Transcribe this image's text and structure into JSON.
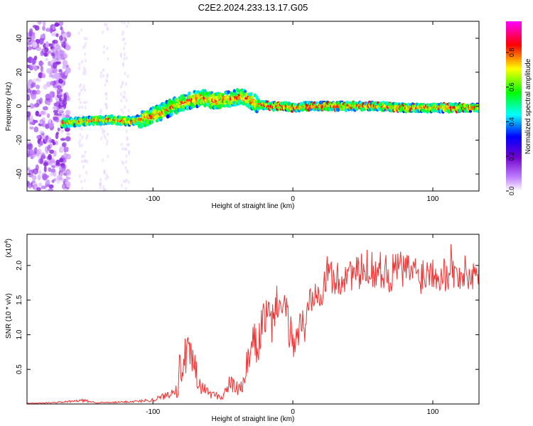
{
  "title": "C2E2.2024.233.13.17.G05",
  "chart_data": [
    {
      "type": "heatmap",
      "xlabel": "Height of straight line (km)",
      "ylabel": "Frequency (Hz)",
      "xlim": [
        -190,
        133
      ],
      "ylim": [
        -50,
        50
      ],
      "xticks": [
        -100,
        0,
        100
      ],
      "yticks": [
        -40,
        -20,
        0,
        20,
        40
      ],
      "colorbar": {
        "label": "Normalized spectral amplitude",
        "range": [
          0,
          0.98
        ],
        "ticks": [
          0.0,
          0.2,
          0.4,
          0.6,
          0.8
        ],
        "colors": [
          "#ffffff",
          "#c080ff",
          "#7000d0",
          "#0000ff",
          "#00ffff",
          "#00ff00",
          "#ffff00",
          "#ff0000",
          "#ff00ff"
        ]
      },
      "ridge": {
        "x": [
          -165,
          -150,
          -130,
          -115,
          -105,
          -95,
          -85,
          -75,
          -65,
          -55,
          -45,
          -38,
          -32,
          -25,
          -15,
          -5,
          0,
          10,
          20,
          40,
          60,
          80,
          100,
          120,
          133
        ],
        "freq": [
          -10,
          -9,
          -8,
          -9,
          -7,
          -4,
          0,
          3,
          5,
          3,
          4,
          6,
          4,
          1,
          0,
          0,
          -1,
          0,
          0,
          0,
          0,
          -1,
          -1,
          -1,
          -1
        ]
      },
      "noise_band": {
        "x_from": -190,
        "x_to": -160
      }
    },
    {
      "type": "line",
      "xlabel": "Height of straight line (km)",
      "ylabel": "SNR (10 * v/v)",
      "y_exponent": "(x10",
      "y_exponent_power": "4",
      "xlim": [
        -190,
        133
      ],
      "ylim": [
        0,
        2.45
      ],
      "xticks": [
        -100,
        0,
        100
      ],
      "yticks": [
        0.5,
        1.0,
        1.5,
        2.0
      ],
      "ytick_labels": [
        "0.5",
        "1.0",
        "1.5",
        "2.0"
      ],
      "series": [
        {
          "color": "#ee3333",
          "x": [
            -190,
            -170,
            -150,
            -140,
            -130,
            -120,
            -110,
            -100,
            -95,
            -90,
            -85,
            -80,
            -76,
            -72,
            -68,
            -64,
            -60,
            -55,
            -50,
            -48,
            -45,
            -42,
            -38,
            -35,
            -32,
            -28,
            -25,
            -22,
            -18,
            -15,
            -12,
            -8,
            -5,
            -2,
            0,
            3,
            6,
            9,
            12,
            15,
            18,
            21,
            24,
            27,
            30,
            35,
            40,
            45,
            50,
            55,
            60,
            65,
            70,
            75,
            80,
            85,
            90,
            95,
            100,
            105,
            110,
            113,
            116,
            120,
            125,
            130,
            133
          ],
          "y": [
            0.01,
            0.02,
            0.05,
            0.02,
            0.02,
            0.03,
            0.04,
            0.06,
            0.09,
            0.13,
            0.2,
            0.5,
            0.72,
            0.6,
            0.3,
            0.22,
            0.16,
            0.12,
            0.1,
            0.2,
            0.3,
            0.25,
            0.2,
            0.3,
            0.6,
            0.9,
            0.8,
            1.2,
            1.3,
            1.1,
            1.5,
            1.4,
            1.3,
            1.05,
            0.9,
            1.0,
            1.15,
            1.1,
            1.5,
            1.65,
            1.75,
            1.6,
            1.85,
            1.9,
            1.75,
            1.8,
            1.95,
            1.85,
            1.9,
            2.0,
            1.9,
            1.95,
            1.85,
            2.0,
            1.9,
            1.95,
            1.85,
            1.9,
            1.95,
            1.9,
            1.85,
            2.1,
            1.8,
            1.9,
            1.85,
            1.9,
            1.85
          ]
        }
      ]
    }
  ]
}
